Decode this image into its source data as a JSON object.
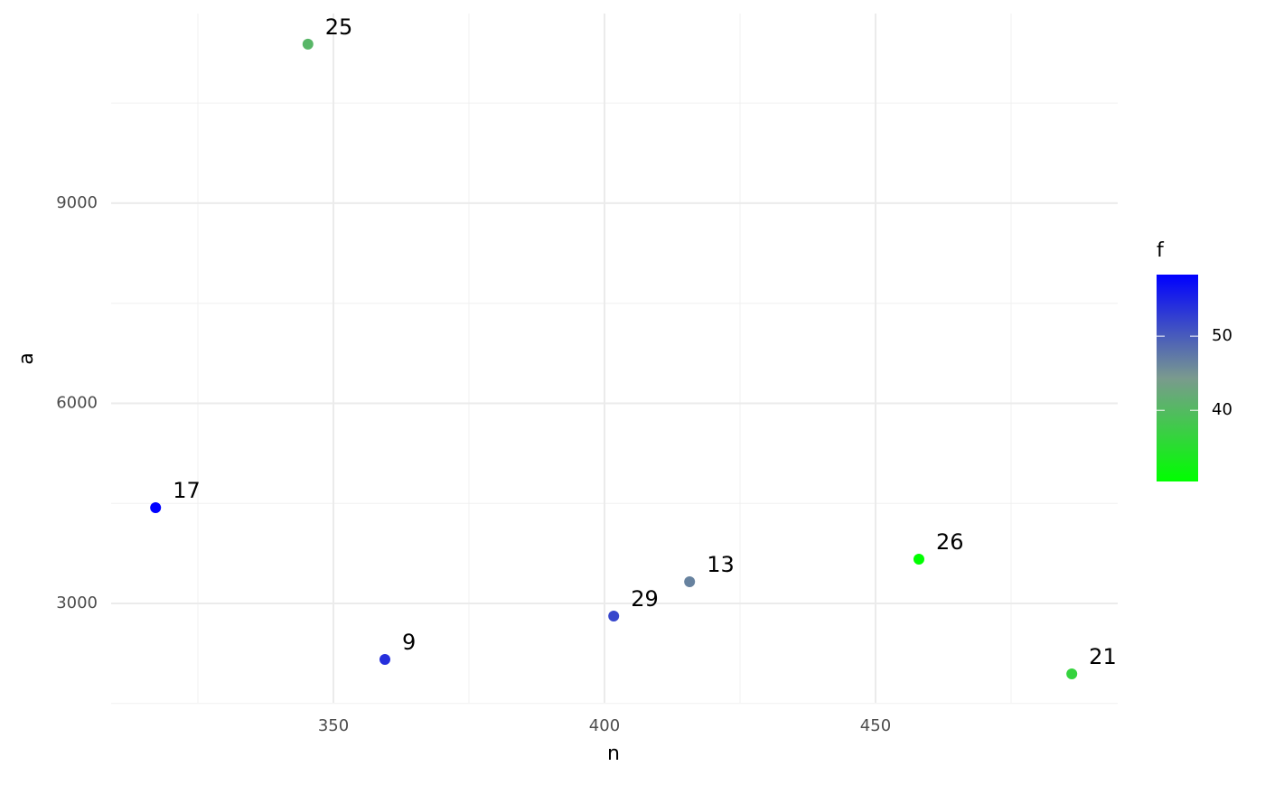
{
  "chart_data": {
    "type": "scatter",
    "x_label": "n",
    "y_label": "a",
    "series": [
      {
        "x": [
          317.2,
          345.3,
          359.5,
          401.7,
          415.7,
          458.0,
          486.2
        ],
        "values": [
          4435,
          11384,
          2160,
          2810,
          3325,
          3663,
          1944
        ],
        "f": [
          58.3,
          40.5,
          54.0,
          52.0,
          46.5,
          30.4,
          36.5
        ],
        "labels": [
          "17",
          "25",
          "9",
          "29",
          "13",
          "26",
          "21"
        ]
      }
    ],
    "xlim": [
      309,
      494.67
    ],
    "xticks": [
      350,
      400,
      450
    ],
    "x_minor_ticks": [
      325,
      375,
      425,
      475
    ],
    "ylim": [
      1510,
      11843
    ],
    "yticks": [
      3000,
      6000,
      9000
    ],
    "y_minor_ticks": [
      1500,
      4500,
      7500,
      10500
    ],
    "grid": true,
    "colorbar": {
      "title": "f",
      "lim": [
        30.4,
        58.3
      ],
      "ticks": [
        40,
        50
      ],
      "colors": [
        "#00ff00",
        "#7a9a8e",
        "#0000ff"
      ]
    }
  }
}
